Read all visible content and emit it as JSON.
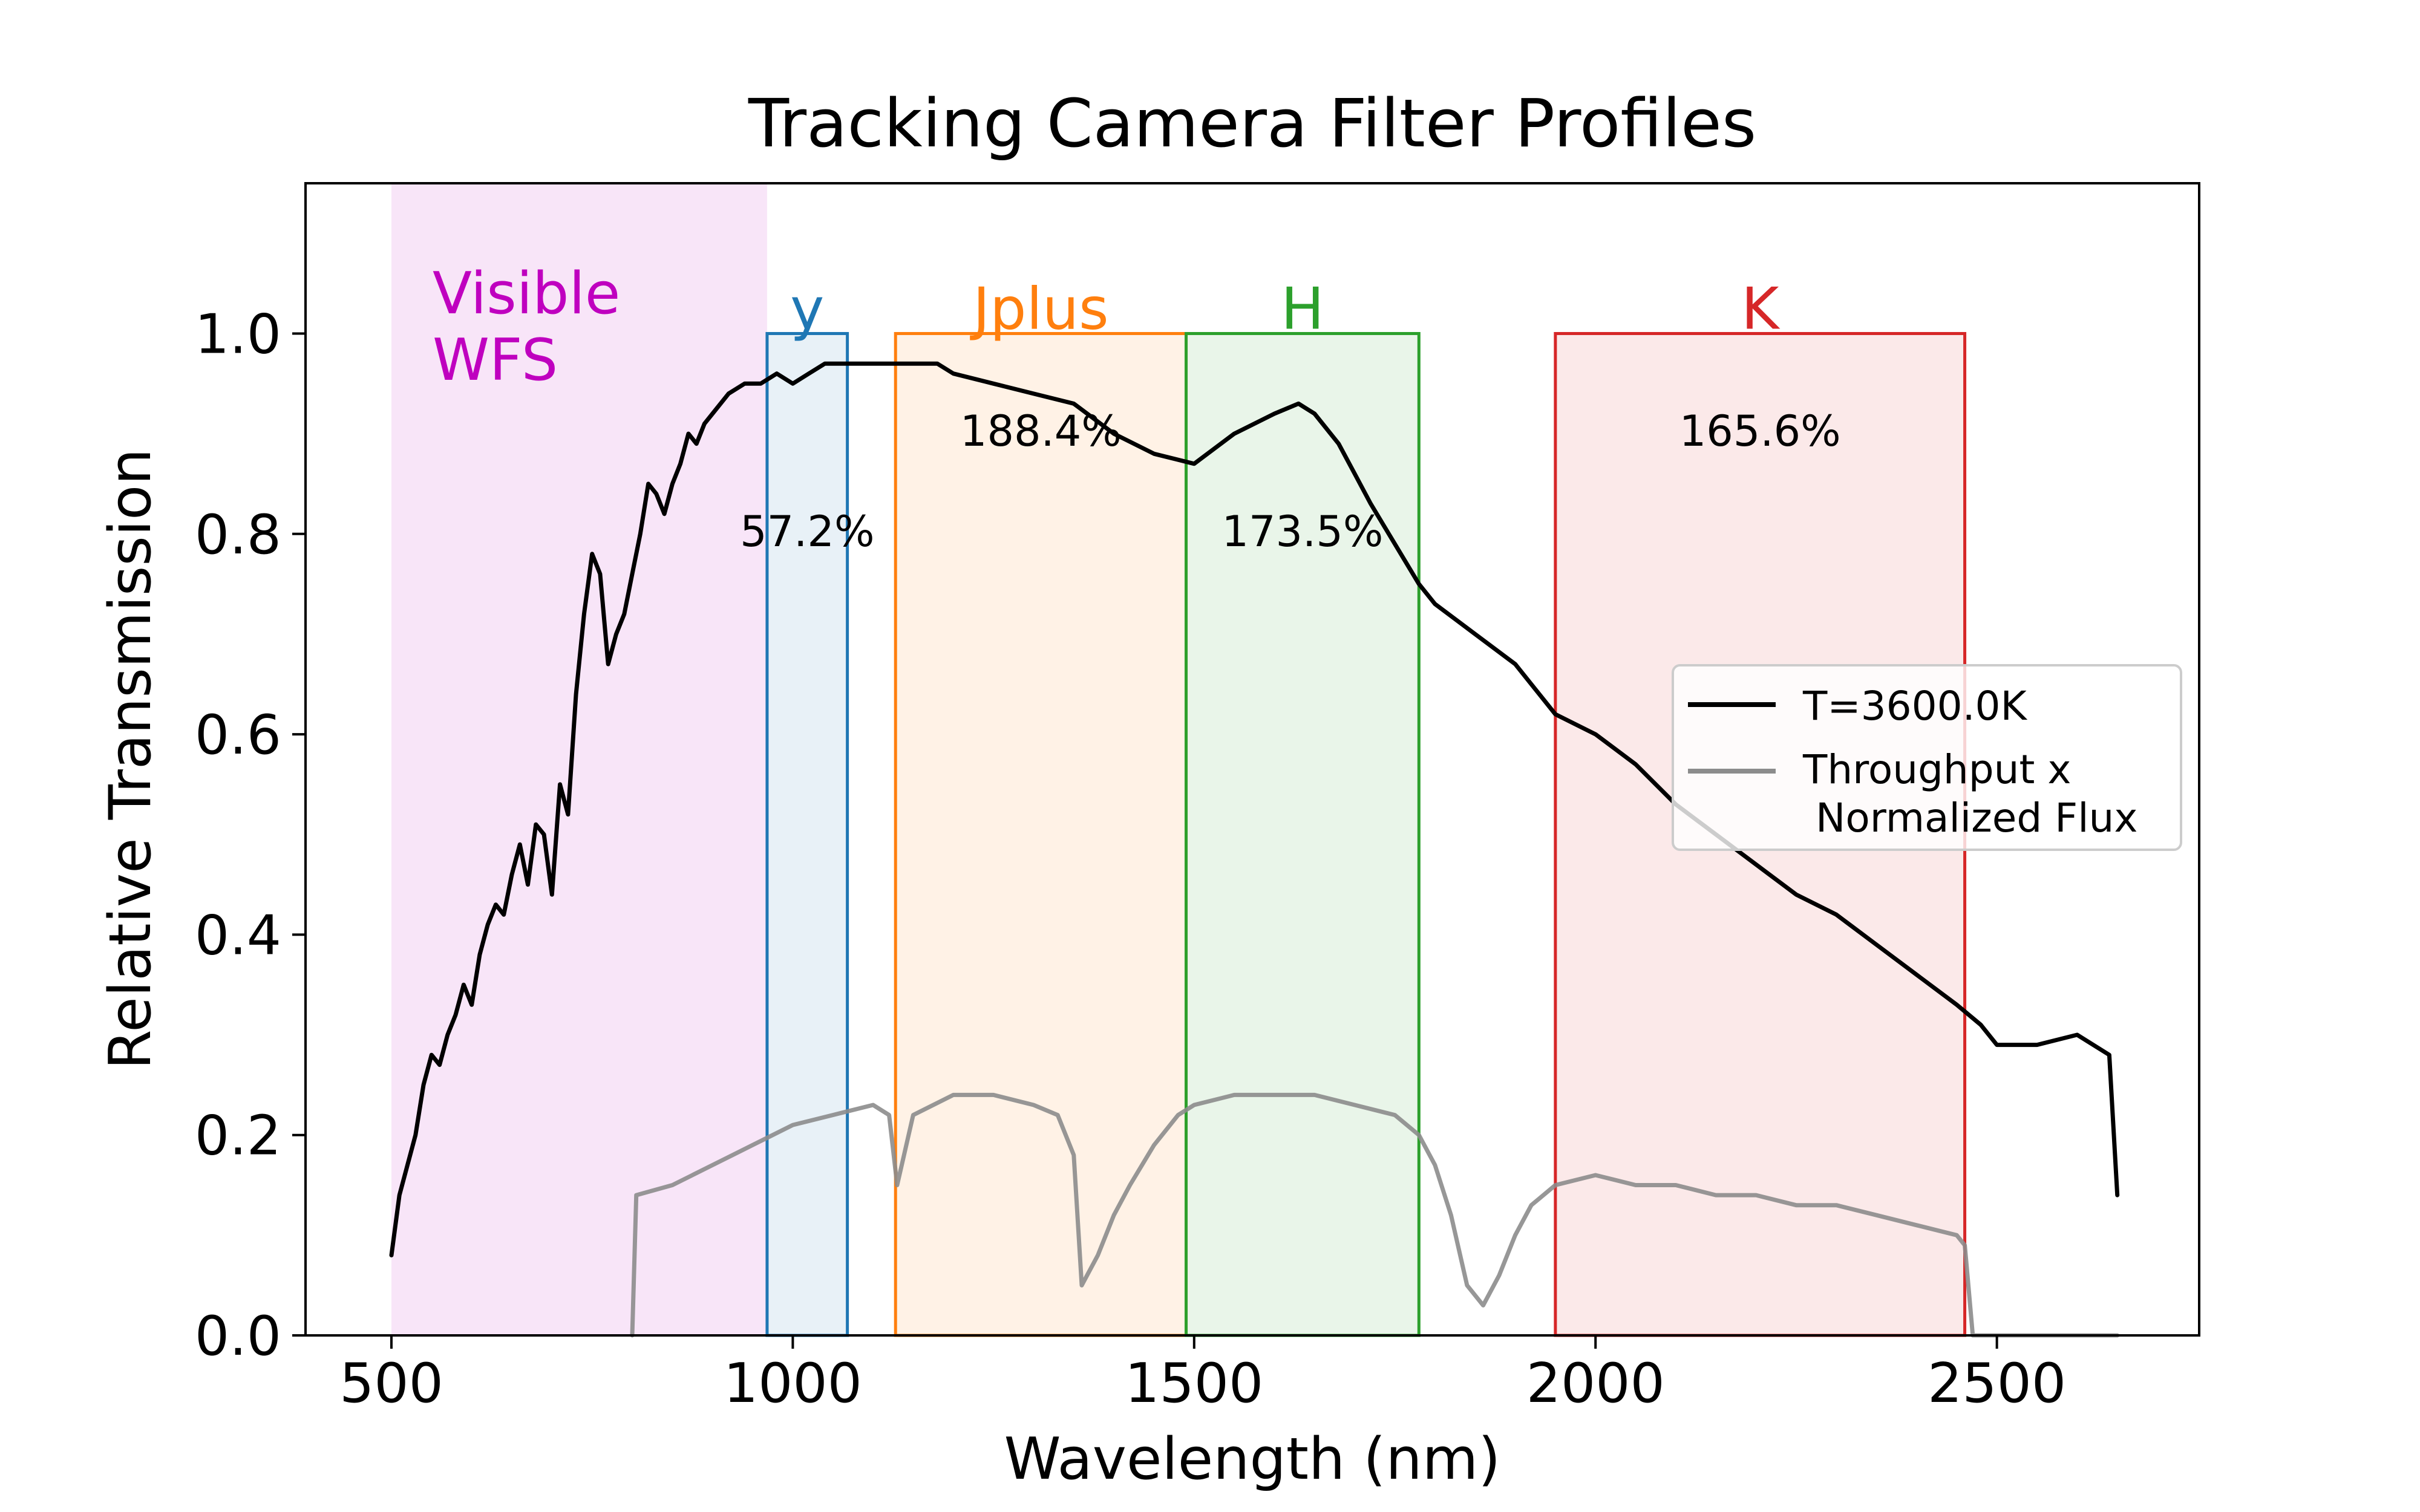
{
  "chart_data": {
    "type": "line",
    "title": "Tracking Camera Filter Profiles",
    "xlabel": "Wavelength (nm)",
    "ylabel": "Relative Transmission",
    "xlim": [
      393,
      2752
    ],
    "ylim": [
      0.0,
      1.15
    ],
    "x_ticks": [
      500,
      1000,
      1500,
      2000,
      2500
    ],
    "x_tick_labels": [
      "500",
      "1000",
      "1500",
      "2000",
      "2500"
    ],
    "y_ticks": [
      0.0,
      0.2,
      0.4,
      0.6,
      0.8,
      1.0
    ],
    "y_tick_labels": [
      "0.0",
      "0.2",
      "0.4",
      "0.6",
      "0.8",
      "1.0"
    ],
    "grid": false,
    "legend": {
      "placement": "center-right",
      "entries": [
        {
          "label": "T=3600.0K",
          "color": "#000000"
        },
        {
          "label": "Throughput x\n Normalized Flux",
          "color": "#8c8c8c"
        }
      ]
    },
    "shaded_region": {
      "label_lines": [
        "Visible",
        "WFS"
      ],
      "x_range": [
        500,
        968
      ],
      "color": "#bf00bf"
    },
    "filters": [
      {
        "name": "y",
        "range": [
          968,
          1068
        ],
        "color": "#1f77b4",
        "percent_label": "57.2%",
        "percent_y": 0.8
      },
      {
        "name": "Jplus",
        "range": [
          1128,
          1490
        ],
        "color": "#ff7f0e",
        "percent_label": "188.4%",
        "percent_y": 0.9
      },
      {
        "name": "H",
        "range": [
          1490,
          1780
        ],
        "color": "#2ca02c",
        "percent_label": "173.5%",
        "percent_y": 0.8
      },
      {
        "name": "K",
        "range": [
          1950,
          2460
        ],
        "color": "#d62728",
        "percent_label": "165.6%",
        "percent_y": 0.9
      }
    ],
    "series": [
      {
        "name": "T=3600.0K",
        "color": "#000000",
        "x": [
          500,
          510,
          520,
          530,
          540,
          550,
          560,
          570,
          580,
          590,
          600,
          610,
          620,
          630,
          640,
          650,
          660,
          670,
          680,
          690,
          700,
          710,
          720,
          730,
          740,
          750,
          760,
          770,
          780,
          790,
          800,
          810,
          820,
          830,
          840,
          850,
          860,
          870,
          880,
          890,
          900,
          920,
          940,
          960,
          980,
          1000,
          1020,
          1040,
          1060,
          1080,
          1100,
          1120,
          1140,
          1160,
          1180,
          1200,
          1250,
          1300,
          1350,
          1400,
          1450,
          1500,
          1550,
          1600,
          1630,
          1650,
          1680,
          1700,
          1720,
          1750,
          1780,
          1800,
          1850,
          1900,
          1950,
          2000,
          2050,
          2100,
          2150,
          2200,
          2250,
          2300,
          2350,
          2400,
          2450,
          2480,
          2500,
          2550,
          2600,
          2640,
          2650
        ],
        "y": [
          0.08,
          0.14,
          0.17,
          0.2,
          0.25,
          0.28,
          0.27,
          0.3,
          0.32,
          0.35,
          0.33,
          0.38,
          0.41,
          0.43,
          0.42,
          0.46,
          0.49,
          0.45,
          0.51,
          0.5,
          0.44,
          0.55,
          0.52,
          0.64,
          0.72,
          0.78,
          0.76,
          0.67,
          0.7,
          0.72,
          0.76,
          0.8,
          0.85,
          0.84,
          0.82,
          0.85,
          0.87,
          0.9,
          0.89,
          0.91,
          0.92,
          0.94,
          0.95,
          0.95,
          0.96,
          0.95,
          0.96,
          0.97,
          0.97,
          0.97,
          0.97,
          0.97,
          0.97,
          0.97,
          0.97,
          0.96,
          0.95,
          0.94,
          0.93,
          0.9,
          0.88,
          0.87,
          0.9,
          0.92,
          0.93,
          0.92,
          0.89,
          0.86,
          0.83,
          0.79,
          0.75,
          0.73,
          0.7,
          0.67,
          0.62,
          0.6,
          0.57,
          0.53,
          0.5,
          0.47,
          0.44,
          0.42,
          0.39,
          0.36,
          0.33,
          0.31,
          0.29,
          0.29,
          0.3,
          0.28,
          0.14
        ]
      },
      {
        "name": "Throughput x\n Normalized Flux",
        "color": "#8c8c8c",
        "x": [
          800,
          805,
          850,
          900,
          950,
          1000,
          1050,
          1100,
          1120,
          1130,
          1150,
          1200,
          1250,
          1300,
          1330,
          1350,
          1360,
          1380,
          1400,
          1420,
          1450,
          1480,
          1500,
          1550,
          1600,
          1650,
          1700,
          1750,
          1780,
          1800,
          1820,
          1840,
          1860,
          1880,
          1900,
          1920,
          1950,
          2000,
          2050,
          2100,
          2150,
          2200,
          2250,
          2300,
          2350,
          2400,
          2450,
          2460,
          2470,
          2650
        ],
        "y": [
          0.0,
          0.14,
          0.15,
          0.17,
          0.19,
          0.21,
          0.22,
          0.23,
          0.22,
          0.15,
          0.22,
          0.24,
          0.24,
          0.23,
          0.22,
          0.18,
          0.05,
          0.08,
          0.12,
          0.15,
          0.19,
          0.22,
          0.23,
          0.24,
          0.24,
          0.24,
          0.23,
          0.22,
          0.2,
          0.17,
          0.12,
          0.05,
          0.03,
          0.06,
          0.1,
          0.13,
          0.15,
          0.16,
          0.15,
          0.15,
          0.14,
          0.14,
          0.13,
          0.13,
          0.12,
          0.11,
          0.1,
          0.09,
          0.0,
          0.0
        ]
      }
    ]
  }
}
